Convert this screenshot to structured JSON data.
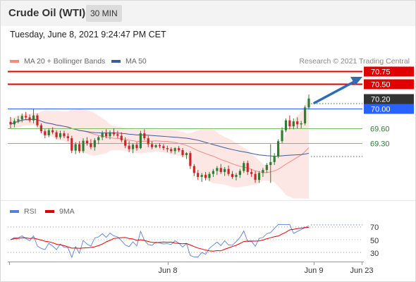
{
  "header": {
    "instrument": "Crude Oil (WTI)",
    "timeframe": "30 MIN"
  },
  "timestamp": "Tuesday, June 8, 2021 9:24:47 PM CET",
  "legend": {
    "ma20": {
      "label": "MA 20 + Bollinger Bands",
      "color": "#f28b82"
    },
    "ma50": {
      "label": "MA 50",
      "color": "#3d5a99"
    }
  },
  "credit": "Research © 2021 Trading Central",
  "levels": [
    {
      "value": "70.75",
      "kind": "resistance",
      "color": "#e00000"
    },
    {
      "value": "70.50",
      "kind": "resistance",
      "color": "#e00000"
    },
    {
      "value": "70.20",
      "kind": "last",
      "color": "#333333"
    },
    {
      "value": "70.00",
      "kind": "pivot",
      "color": "#2962ff"
    },
    {
      "value": "69.60",
      "kind": "support",
      "color": "#7dba6b"
    },
    {
      "value": "69.30",
      "kind": "support",
      "color": "#7dba6b"
    }
  ],
  "rsi_legend": {
    "rsi": {
      "label": "RSI",
      "color": "#5b7fd6"
    },
    "ma9": {
      "label": "9MA",
      "color": "#e00000"
    }
  },
  "rsi_levels": [
    "70",
    "50",
    "30"
  ],
  "x_axis": [
    "Jun 8",
    "Jun 9",
    "Jun 23"
  ],
  "colors": {
    "bull": "#2e7d32",
    "bear": "#c62828",
    "band_fill": "#fde3e1",
    "arrow": "#2e6cb5"
  },
  "chart_data": {
    "type": "candlestick",
    "y_range": [
      68.25,
      70.95
    ],
    "candles": [
      [
        69.73,
        69.83,
        69.6,
        69.68
      ],
      [
        69.68,
        69.8,
        69.62,
        69.75
      ],
      [
        69.75,
        69.85,
        69.7,
        69.78
      ],
      [
        69.78,
        69.9,
        69.72,
        69.85
      ],
      [
        69.85,
        69.93,
        69.78,
        69.82
      ],
      [
        69.82,
        69.88,
        69.72,
        69.76
      ],
      [
        69.76,
        70.0,
        69.7,
        69.86
      ],
      [
        69.86,
        69.9,
        69.62,
        69.66
      ],
      [
        69.66,
        69.7,
        69.5,
        69.54
      ],
      [
        69.54,
        69.58,
        69.4,
        69.46
      ],
      [
        69.46,
        69.6,
        69.42,
        69.56
      ],
      [
        69.56,
        69.62,
        69.48,
        69.52
      ],
      [
        69.52,
        69.56,
        69.38,
        69.42
      ],
      [
        69.42,
        69.55,
        69.38,
        69.5
      ],
      [
        69.5,
        69.55,
        69.4,
        69.44
      ],
      [
        69.44,
        69.5,
        69.34,
        69.4
      ],
      [
        69.4,
        69.45,
        69.1,
        69.15
      ],
      [
        69.15,
        69.32,
        69.08,
        69.28
      ],
      [
        69.28,
        69.34,
        69.1,
        69.14
      ],
      [
        69.14,
        69.4,
        69.1,
        69.35
      ],
      [
        69.35,
        69.42,
        69.25,
        69.3
      ],
      [
        69.3,
        69.38,
        69.18,
        69.22
      ],
      [
        69.22,
        69.4,
        69.15,
        69.36
      ],
      [
        69.36,
        69.45,
        69.28,
        69.42
      ],
      [
        69.42,
        69.55,
        69.36,
        69.5
      ],
      [
        69.5,
        69.58,
        69.4,
        69.44
      ],
      [
        69.44,
        69.56,
        69.38,
        69.52
      ],
      [
        69.52,
        69.6,
        69.44,
        69.48
      ],
      [
        69.48,
        69.55,
        69.4,
        69.45
      ],
      [
        69.45,
        69.52,
        69.32,
        69.36
      ],
      [
        69.36,
        69.42,
        69.2,
        69.25
      ],
      [
        69.25,
        69.34,
        69.12,
        69.18
      ],
      [
        69.18,
        69.3,
        69.1,
        69.27
      ],
      [
        69.27,
        69.32,
        69.15,
        69.2
      ],
      [
        69.2,
        69.55,
        69.18,
        69.5
      ],
      [
        69.5,
        69.58,
        69.36,
        69.4
      ],
      [
        69.4,
        69.45,
        69.22,
        69.28
      ],
      [
        69.28,
        69.34,
        69.18,
        69.22
      ],
      [
        69.22,
        69.28,
        69.2,
        69.26
      ],
      [
        69.26,
        69.3,
        69.2,
        69.24
      ],
      [
        69.24,
        69.28,
        69.16,
        69.2
      ],
      [
        69.2,
        69.25,
        69.12,
        69.18
      ],
      [
        69.18,
        69.22,
        69.1,
        69.14
      ],
      [
        69.14,
        69.22,
        69.08,
        69.2
      ],
      [
        69.2,
        69.24,
        69.12,
        69.16
      ],
      [
        69.16,
        69.2,
        69.02,
        69.06
      ],
      [
        69.06,
        69.12,
        68.98,
        69.1
      ],
      [
        69.1,
        69.14,
        68.78,
        68.84
      ],
      [
        68.84,
        68.88,
        68.64,
        68.7
      ],
      [
        68.7,
        68.76,
        68.56,
        68.62
      ],
      [
        68.62,
        68.7,
        68.52,
        68.66
      ],
      [
        68.66,
        68.72,
        68.55,
        68.6
      ],
      [
        68.6,
        68.72,
        68.54,
        68.68
      ],
      [
        68.68,
        68.78,
        68.62,
        68.74
      ],
      [
        68.74,
        68.84,
        68.66,
        68.8
      ],
      [
        68.8,
        68.88,
        68.68,
        68.72
      ],
      [
        68.72,
        68.82,
        68.64,
        68.78
      ],
      [
        68.78,
        68.85,
        68.64,
        68.68
      ],
      [
        68.68,
        68.74,
        68.58,
        68.62
      ],
      [
        68.62,
        68.7,
        68.55,
        68.66
      ],
      [
        68.66,
        68.78,
        68.6,
        68.74
      ],
      [
        68.74,
        68.94,
        68.7,
        68.9
      ],
      [
        68.9,
        68.95,
        68.66,
        68.72
      ],
      [
        68.72,
        68.78,
        68.62,
        68.68
      ],
      [
        68.68,
        68.74,
        68.5,
        68.56
      ],
      [
        68.56,
        68.74,
        68.5,
        68.7
      ],
      [
        68.7,
        68.8,
        68.62,
        68.76
      ],
      [
        68.76,
        68.9,
        68.7,
        68.86
      ],
      [
        68.86,
        69.28,
        68.5,
        68.92
      ],
      [
        68.92,
        69.1,
        68.86,
        69.04
      ],
      [
        69.04,
        69.38,
        69.0,
        69.34
      ],
      [
        69.34,
        69.62,
        69.3,
        69.56
      ],
      [
        69.56,
        69.8,
        69.52,
        69.76
      ],
      [
        69.76,
        69.86,
        69.58,
        69.64
      ],
      [
        69.64,
        69.8,
        69.58,
        69.74
      ],
      [
        69.74,
        69.82,
        69.6,
        69.68
      ],
      [
        69.68,
        69.75,
        69.6,
        69.7
      ],
      [
        69.7,
        70.06,
        69.66,
        70.02
      ],
      [
        70.02,
        70.28,
        69.98,
        70.2
      ]
    ]
  }
}
